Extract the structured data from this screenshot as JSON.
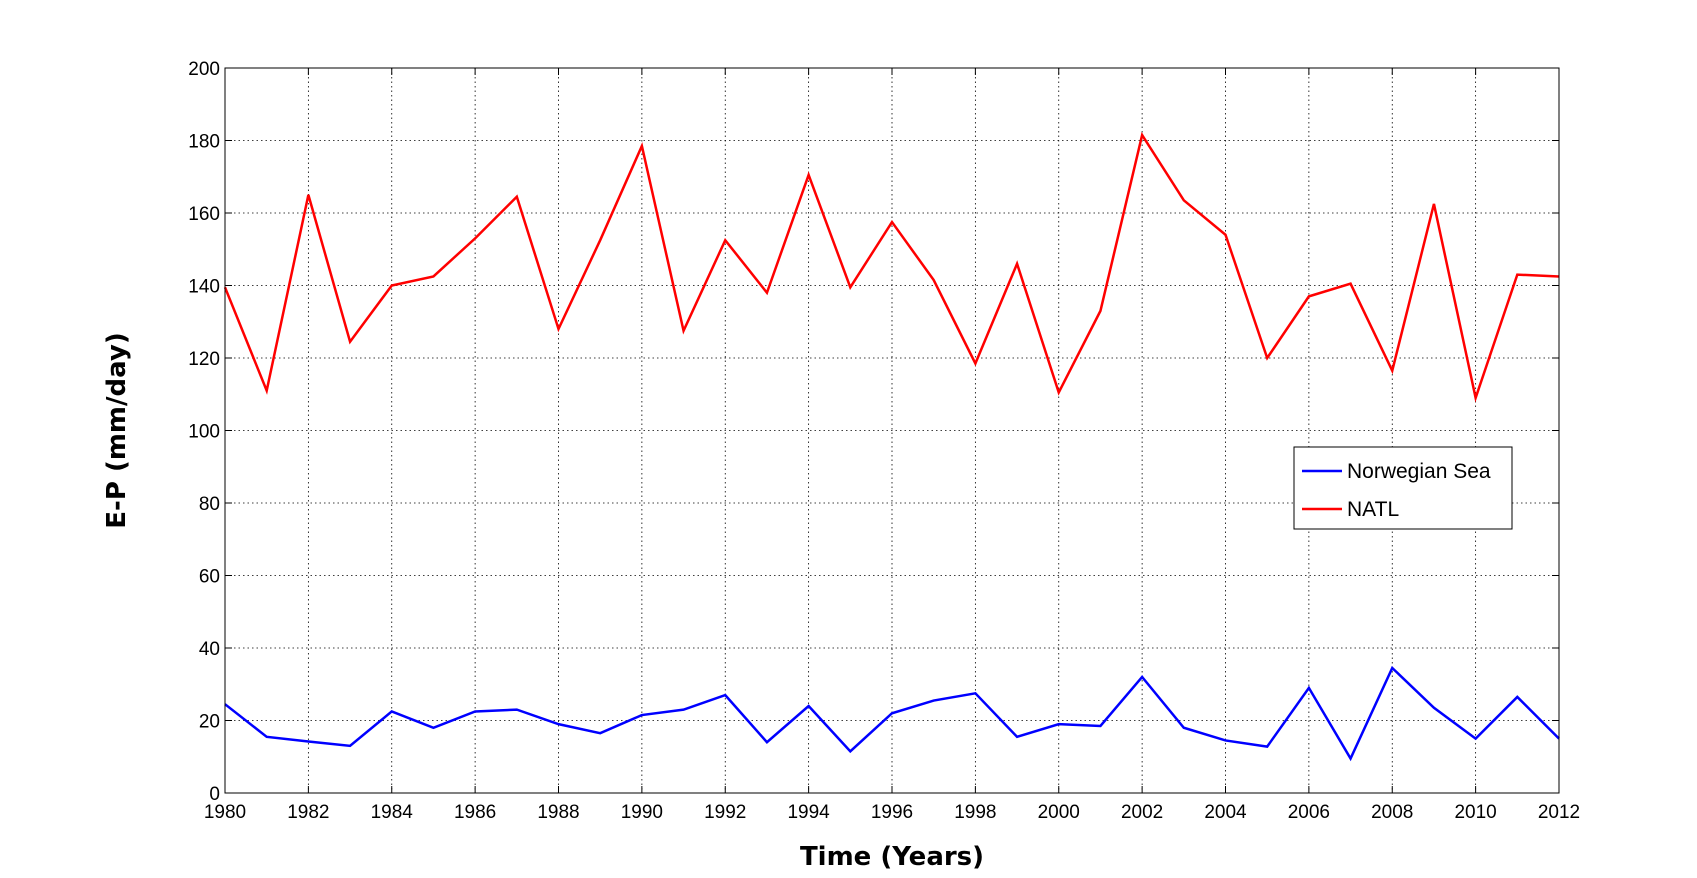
{
  "chart_data": {
    "type": "line",
    "title": "",
    "xlabel": "Time (Years)",
    "ylabel": "E-P (mm/day)",
    "xlim": [
      1980,
      2012
    ],
    "ylim": [
      0,
      200
    ],
    "xticks": [
      1980,
      1982,
      1984,
      1986,
      1988,
      1990,
      1992,
      1994,
      1996,
      1998,
      2000,
      2002,
      2004,
      2006,
      2008,
      2010,
      2012
    ],
    "yticks": [
      0,
      20,
      40,
      60,
      80,
      100,
      120,
      140,
      160,
      180,
      200
    ],
    "grid": true,
    "legend_position": "right",
    "x": [
      1980,
      1981,
      1982,
      1983,
      1984,
      1985,
      1986,
      1987,
      1988,
      1989,
      1990,
      1991,
      1992,
      1993,
      1994,
      1995,
      1996,
      1997,
      1998,
      1999,
      2000,
      2001,
      2002,
      2003,
      2004,
      2005,
      2006,
      2007,
      2008,
      2009,
      2010,
      2011,
      2012
    ],
    "series": [
      {
        "name": "Norwegian Sea",
        "color": "#0000ff",
        "values": [
          24.5,
          15.5,
          14.2,
          13.0,
          22.5,
          18.0,
          22.5,
          23.0,
          19.0,
          16.5,
          21.5,
          23.0,
          27.0,
          14.0,
          24.0,
          11.5,
          22.0,
          25.5,
          27.5,
          15.5,
          19.0,
          18.5,
          32.0,
          18.0,
          14.5,
          12.8,
          29.0,
          9.5,
          34.5,
          23.5,
          15.0,
          26.5,
          15.0
        ]
      },
      {
        "name": "NATL",
        "color": "#ff0000",
        "values": [
          139.5,
          111.0,
          165.0,
          124.5,
          140.0,
          142.5,
          153.0,
          164.5,
          128.0,
          152.5,
          178.5,
          127.5,
          152.5,
          138.0,
          170.5,
          139.5,
          157.5,
          141.5,
          118.5,
          146.0,
          110.5,
          133.0,
          181.5,
          163.5,
          154.0,
          120.0,
          137.0,
          140.5,
          116.5,
          162.5,
          109.0,
          143.0,
          142.5
        ]
      }
    ]
  }
}
